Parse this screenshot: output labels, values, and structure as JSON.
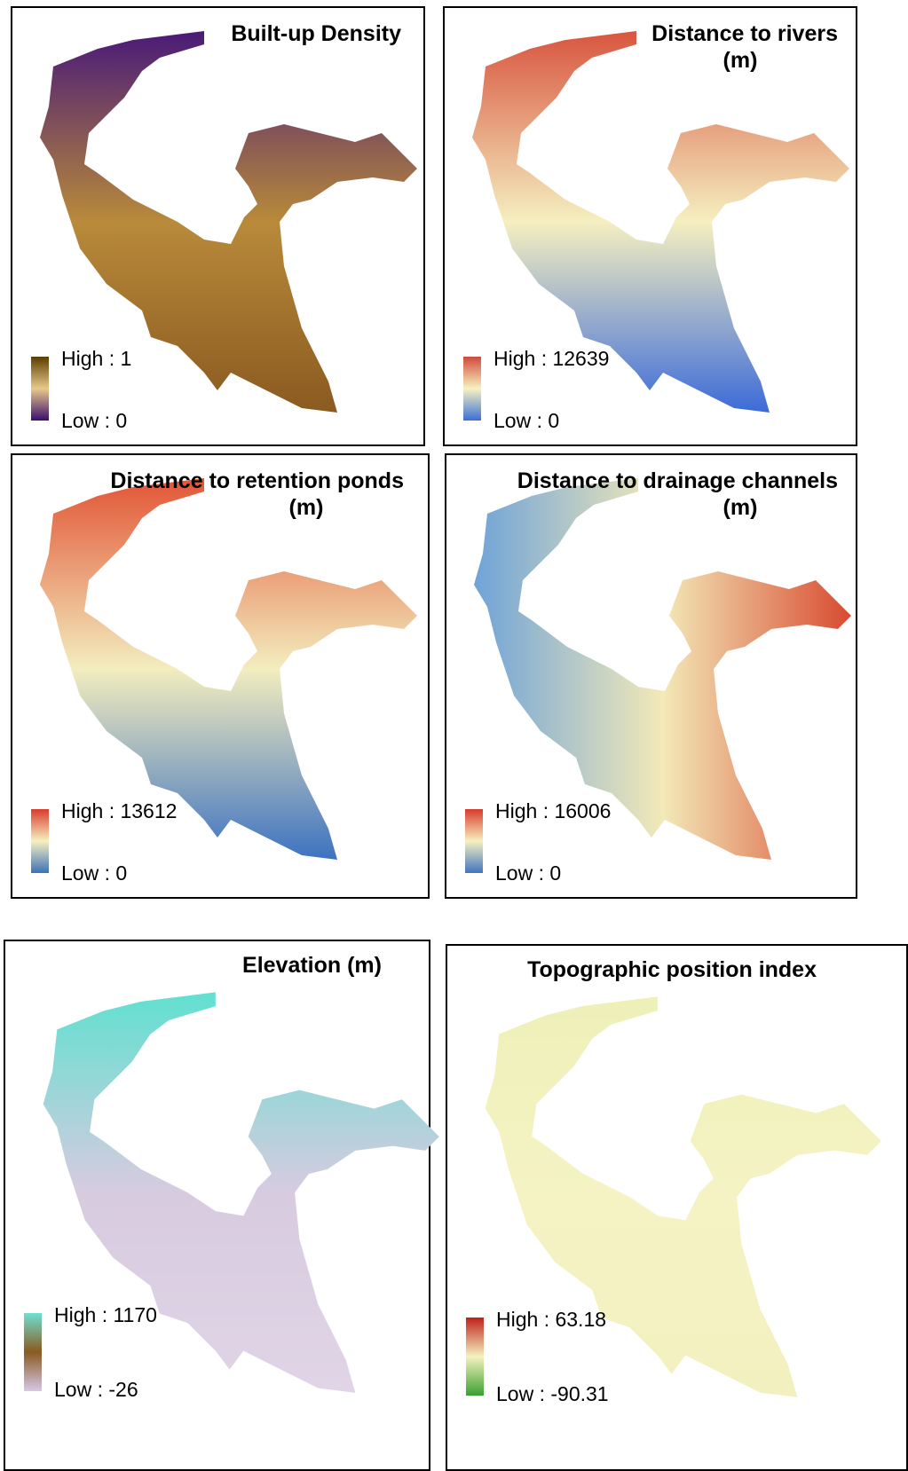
{
  "panels": [
    {
      "title": [
        "Built-up Density"
      ],
      "high": "High : 1",
      "low": "Low : 0"
    },
    {
      "title": [
        "Distance to rivers",
        "(m)"
      ],
      "high": "High : 12639",
      "low": "Low : 0"
    },
    {
      "title": [
        "Distance to retention ponds",
        "(m)"
      ],
      "high": "High : 13612",
      "low": "Low : 0"
    },
    {
      "title": [
        "Distance to drainage channels",
        "(m)"
      ],
      "high": "High : 16006",
      "low": "Low : 0"
    },
    {
      "title": [
        "Elevation (m)"
      ],
      "high": "High : 1170",
      "low": "Low : -26"
    },
    {
      "title": [
        "Topographic position index"
      ],
      "high": "High : 63.18",
      "low": "Low : -90.31"
    }
  ]
}
